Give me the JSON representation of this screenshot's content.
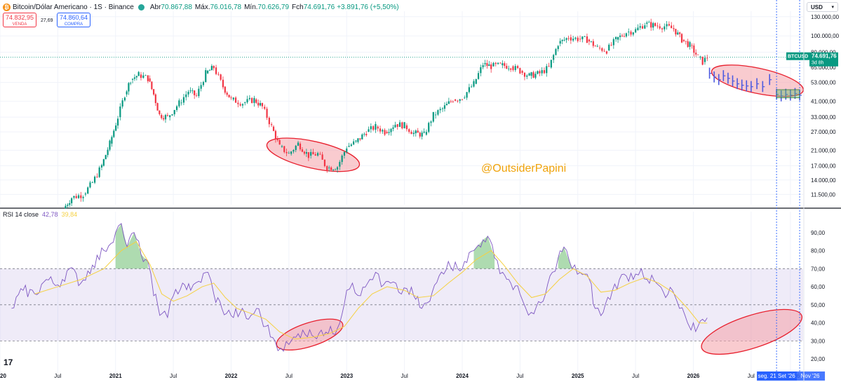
{
  "header": {
    "symbol": "Bitcoin/Dólar Americano · 1S · Binance",
    "open_label": "Abr",
    "open": "70.867,88",
    "high_label": "Máx.",
    "high": "76.016,78",
    "low_label": "Mín.",
    "low": "70.626,79",
    "close_label": "Fch",
    "close": "74.691,76",
    "change": "+3.891,76 (+5,50%)"
  },
  "sell": {
    "price": "74.832,95",
    "label": "VENDA"
  },
  "spread": "27,69",
  "buy": {
    "price": "74.860,64",
    "label": "COMPRA"
  },
  "currency": "USD",
  "watermark": "@OutsiderPapini",
  "logo": "17",
  "price_tag": {
    "symbol": "BTCUSD",
    "price": "74.691,76",
    "countdown": "3d 8h"
  },
  "rsi_legend": {
    "name": "RSI 14 close",
    "value": "42,78",
    "ma": "39,84"
  },
  "crosshair_label": "seg. 21 Set '26",
  "colors": {
    "up": "#089981",
    "down": "#f23645",
    "rsi_line": "#7e57c2",
    "rsi_ma": "#f5d142",
    "ellipse_fill": "#f4a0a8",
    "ellipse_stroke": "#e8202e",
    "projection": "#4c5be0",
    "crosshair": "#2962ff"
  },
  "chart_data": [
    {
      "type": "candlestick",
      "scale": "log",
      "ylim": [
        10000,
        140000
      ],
      "price_ticks": [
        "11.500,00",
        "14.000,00",
        "17.000,00",
        "21.000,00",
        "27.000,00",
        "33.000,00",
        "41.000,00",
        "53.000,00",
        "65.000,00",
        "80.000,00",
        "100.000,00",
        "130.000,00"
      ],
      "price_tick_values": [
        11500,
        14000,
        17000,
        21000,
        27000,
        33000,
        41000,
        53000,
        65000,
        80000,
        100000,
        130000
      ],
      "time_labels": [
        "2020",
        "Jul",
        "2021",
        "Jul",
        "2022",
        "Jul",
        "2023",
        "Jul",
        "2024",
        "Jul",
        "2025",
        "Jul",
        "2026",
        "Jul",
        "Nov '26"
      ],
      "time_label_dates": [
        2020.0,
        2020.5,
        2021.0,
        2021.5,
        2022.0,
        2022.5,
        2023.0,
        2023.5,
        2024.0,
        2024.5,
        2025.0,
        2025.5,
        2026.0,
        2026.5,
        2026.84
      ],
      "xlim": [
        2020.0,
        2026.95
      ],
      "path": [
        [
          2020.55,
          9500
        ],
        [
          2020.62,
          11000
        ],
        [
          2020.72,
          11500
        ],
        [
          2020.8,
          13500
        ],
        [
          2020.88,
          17000
        ],
        [
          2020.95,
          23000
        ],
        [
          2021.02,
          33000
        ],
        [
          2021.08,
          45000
        ],
        [
          2021.13,
          55000
        ],
        [
          2021.2,
          59000
        ],
        [
          2021.28,
          56000
        ],
        [
          2021.33,
          45000
        ],
        [
          2021.38,
          34000
        ],
        [
          2021.45,
          33000
        ],
        [
          2021.55,
          40000
        ],
        [
          2021.63,
          47000
        ],
        [
          2021.7,
          44000
        ],
        [
          2021.78,
          60000
        ],
        [
          2021.85,
          65000
        ],
        [
          2021.93,
          50000
        ],
        [
          2022.0,
          42000
        ],
        [
          2022.1,
          40000
        ],
        [
          2022.2,
          42000
        ],
        [
          2022.27,
          38000
        ],
        [
          2022.35,
          29000
        ],
        [
          2022.42,
          22000
        ],
        [
          2022.5,
          20000
        ],
        [
          2022.58,
          23000
        ],
        [
          2022.67,
          19500
        ],
        [
          2022.75,
          20000
        ],
        [
          2022.83,
          16500
        ],
        [
          2022.92,
          16800
        ],
        [
          2023.0,
          22000
        ],
        [
          2023.08,
          23500
        ],
        [
          2023.17,
          27000
        ],
        [
          2023.25,
          29000
        ],
        [
          2023.33,
          27000
        ],
        [
          2023.42,
          30000
        ],
        [
          2023.5,
          29500
        ],
        [
          2023.58,
          26500
        ],
        [
          2023.67,
          26000
        ],
        [
          2023.75,
          34000
        ],
        [
          2023.83,
          37000
        ],
        [
          2023.92,
          42000
        ],
        [
          2024.0,
          43000
        ],
        [
          2024.1,
          52000
        ],
        [
          2024.18,
          68000
        ],
        [
          2024.25,
          66000
        ],
        [
          2024.33,
          67000
        ],
        [
          2024.42,
          66000
        ],
        [
          2024.5,
          62000
        ],
        [
          2024.58,
          58000
        ],
        [
          2024.67,
          60000
        ],
        [
          2024.75,
          65000
        ],
        [
          2024.83,
          90000
        ],
        [
          2024.92,
          98000
        ],
        [
          2025.0,
          96000
        ],
        [
          2025.08,
          95000
        ],
        [
          2025.17,
          85000
        ],
        [
          2025.25,
          82000
        ],
        [
          2025.33,
          95000
        ],
        [
          2025.42,
          105000
        ],
        [
          2025.5,
          108000
        ],
        [
          2025.58,
          118000
        ],
        [
          2025.67,
          115000
        ],
        [
          2025.75,
          114000
        ],
        [
          2025.83,
          110000
        ],
        [
          2025.9,
          95000
        ],
        [
          2025.97,
          88000
        ],
        [
          2026.04,
          75000
        ],
        [
          2026.08,
          70000
        ],
        [
          2026.12,
          74690
        ]
      ],
      "projection": {
        "bars": [
          [
            2026.14,
            60000
          ],
          [
            2026.18,
            57000
          ],
          [
            2026.22,
            55000
          ],
          [
            2026.26,
            58000
          ],
          [
            2026.3,
            56000
          ],
          [
            2026.34,
            54000
          ],
          [
            2026.38,
            52000
          ],
          [
            2026.42,
            51000
          ],
          [
            2026.46,
            50500
          ],
          [
            2026.5,
            50000
          ],
          [
            2026.55,
            52000
          ],
          [
            2026.6,
            50000
          ],
          [
            2026.66,
            55000
          ],
          [
            2026.72,
            45000
          ],
          [
            2026.76,
            44000
          ],
          [
            2026.8,
            45000
          ],
          [
            2026.84,
            44500
          ],
          [
            2026.88,
            45500
          ],
          [
            2026.92,
            44500
          ]
        ],
        "box": {
          "x0": 2026.72,
          "x1": 2026.92,
          "y0": 43000,
          "y1": 48000
        }
      },
      "current_price": 74691.76,
      "ellipses": [
        {
          "x0": 2022.3,
          "x1": 2023.12,
          "ylow": 15000,
          "yhigh": 26000
        },
        {
          "x0": 2026.15,
          "x1": 2026.96,
          "ylow": 42000,
          "yhigh": 70000
        }
      ],
      "vlines": [
        2026.72,
        2026.92
      ]
    },
    {
      "type": "line",
      "name": "RSI 14 close",
      "ylim": [
        15,
        100
      ],
      "ticks": [
        "20,00",
        "30,00",
        "40,00",
        "50,00",
        "60,00",
        "70,00",
        "80,00",
        "90,00"
      ],
      "tick_values": [
        20,
        30,
        40,
        50,
        60,
        70,
        80,
        90
      ],
      "bands": [
        30,
        50,
        70
      ],
      "rsi": [
        [
          2020.1,
          48
        ],
        [
          2020.2,
          58
        ],
        [
          2020.3,
          56
        ],
        [
          2020.4,
          64
        ],
        [
          2020.5,
          61
        ],
        [
          2020.6,
          70
        ],
        [
          2020.7,
          62
        ],
        [
          2020.8,
          72
        ],
        [
          2020.9,
          80
        ],
        [
          2021.0,
          90
        ],
        [
          2021.05,
          95
        ],
        [
          2021.1,
          82
        ],
        [
          2021.16,
          90
        ],
        [
          2021.22,
          78
        ],
        [
          2021.28,
          74
        ],
        [
          2021.33,
          55
        ],
        [
          2021.4,
          45
        ],
        [
          2021.45,
          43
        ],
        [
          2021.5,
          55
        ],
        [
          2021.58,
          62
        ],
        [
          2021.65,
          58
        ],
        [
          2021.72,
          63
        ],
        [
          2021.8,
          68
        ],
        [
          2021.85,
          56
        ],
        [
          2021.92,
          48
        ],
        [
          2022.0,
          44
        ],
        [
          2022.08,
          46
        ],
        [
          2022.15,
          42
        ],
        [
          2022.22,
          48
        ],
        [
          2022.3,
          38
        ],
        [
          2022.38,
          30
        ],
        [
          2022.43,
          26
        ],
        [
          2022.5,
          28
        ],
        [
          2022.56,
          32
        ],
        [
          2022.62,
          36
        ],
        [
          2022.7,
          33
        ],
        [
          2022.78,
          36
        ],
        [
          2022.84,
          34
        ],
        [
          2022.92,
          37
        ],
        [
          2023.0,
          58
        ],
        [
          2023.05,
          62
        ],
        [
          2023.12,
          55
        ],
        [
          2023.2,
          64
        ],
        [
          2023.25,
          68
        ],
        [
          2023.3,
          60
        ],
        [
          2023.38,
          62
        ],
        [
          2023.45,
          57
        ],
        [
          2023.52,
          59
        ],
        [
          2023.58,
          55
        ],
        [
          2023.65,
          48
        ],
        [
          2023.72,
          52
        ],
        [
          2023.8,
          66
        ],
        [
          2023.88,
          74
        ],
        [
          2023.96,
          70
        ],
        [
          2024.02,
          74
        ],
        [
          2024.1,
          80
        ],
        [
          2024.18,
          86
        ],
        [
          2024.22,
          88
        ],
        [
          2024.28,
          76
        ],
        [
          2024.35,
          68
        ],
        [
          2024.42,
          62
        ],
        [
          2024.5,
          56
        ],
        [
          2024.55,
          48
        ],
        [
          2024.62,
          45
        ],
        [
          2024.7,
          52
        ],
        [
          2024.78,
          68
        ],
        [
          2024.83,
          76
        ],
        [
          2024.88,
          82
        ],
        [
          2024.95,
          70
        ],
        [
          2025.02,
          68
        ],
        [
          2025.1,
          64
        ],
        [
          2025.15,
          48
        ],
        [
          2025.2,
          44
        ],
        [
          2025.3,
          58
        ],
        [
          2025.36,
          64
        ],
        [
          2025.42,
          66
        ],
        [
          2025.5,
          67
        ],
        [
          2025.55,
          70
        ],
        [
          2025.6,
          64
        ],
        [
          2025.68,
          62
        ],
        [
          2025.76,
          54
        ],
        [
          2025.82,
          58
        ],
        [
          2025.88,
          48
        ],
        [
          2025.95,
          40
        ],
        [
          2025.98,
          36
        ],
        [
          2026.04,
          38
        ],
        [
          2026.08,
          42
        ],
        [
          2026.12,
          42.78
        ]
      ],
      "ma": [
        [
          2020.3,
          56
        ],
        [
          2020.5,
          60
        ],
        [
          2020.7,
          64
        ],
        [
          2020.9,
          70
        ],
        [
          2021.05,
          80
        ],
        [
          2021.18,
          85
        ],
        [
          2021.3,
          72
        ],
        [
          2021.4,
          56
        ],
        [
          2021.5,
          52
        ],
        [
          2021.62,
          55
        ],
        [
          2021.75,
          60
        ],
        [
          2021.85,
          62
        ],
        [
          2021.95,
          54
        ],
        [
          2022.05,
          48
        ],
        [
          2022.18,
          45
        ],
        [
          2022.3,
          42
        ],
        [
          2022.42,
          35
        ],
        [
          2022.55,
          31
        ],
        [
          2022.7,
          32
        ],
        [
          2022.85,
          34
        ],
        [
          2022.98,
          38
        ],
        [
          2023.1,
          48
        ],
        [
          2023.22,
          56
        ],
        [
          2023.35,
          60
        ],
        [
          2023.5,
          58
        ],
        [
          2023.62,
          54
        ],
        [
          2023.75,
          55
        ],
        [
          2023.88,
          62
        ],
        [
          2024.0,
          68
        ],
        [
          2024.12,
          75
        ],
        [
          2024.25,
          80
        ],
        [
          2024.36,
          72
        ],
        [
          2024.48,
          62
        ],
        [
          2024.6,
          54
        ],
        [
          2024.72,
          56
        ],
        [
          2024.84,
          64
        ],
        [
          2024.96,
          70
        ],
        [
          2025.08,
          66
        ],
        [
          2025.2,
          57
        ],
        [
          2025.32,
          58
        ],
        [
          2025.45,
          62
        ],
        [
          2025.58,
          65
        ],
        [
          2025.7,
          62
        ],
        [
          2025.82,
          57
        ],
        [
          2025.95,
          48
        ],
        [
          2026.05,
          40
        ],
        [
          2026.12,
          39.84
        ]
      ],
      "rsi_current": "42,78",
      "ma_current": "39,84"
    }
  ]
}
